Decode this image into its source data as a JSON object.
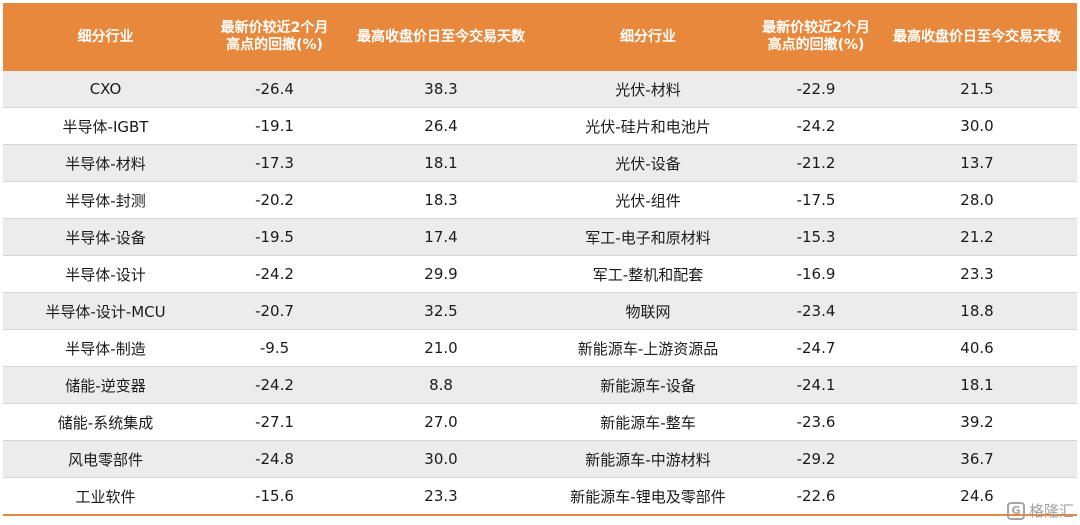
{
  "headers": {
    "col1": "细分行业",
    "col2_line1": "最新价较近2个月",
    "col2_line2": "高点的回撤(%)",
    "col3": "最高收盘价日至今交易天数",
    "col4": "细分行业",
    "col5_line1": "最新价较近2个月",
    "col5_line2": "高点的回撤(%)",
    "col6": "最高收盘价日至今交易天数"
  },
  "rows": [
    {
      "l_industry": "CXO",
      "l_drawdown": "-26.4",
      "l_days": "38.3",
      "r_industry": "光伏-材料",
      "r_drawdown": "-22.9",
      "r_days": "21.5"
    },
    {
      "l_industry": "半导体-IGBT",
      "l_drawdown": "-19.1",
      "l_days": "26.4",
      "r_industry": "光伏-硅片和电池片",
      "r_drawdown": "-24.2",
      "r_days": "30.0"
    },
    {
      "l_industry": "半导体-材料",
      "l_drawdown": "-17.3",
      "l_days": "18.1",
      "r_industry": "光伏-设备",
      "r_drawdown": "-21.2",
      "r_days": "13.7"
    },
    {
      "l_industry": "半导体-封测",
      "l_drawdown": "-20.2",
      "l_days": "18.3",
      "r_industry": "光伏-组件",
      "r_drawdown": "-17.5",
      "r_days": "28.0"
    },
    {
      "l_industry": "半导体-设备",
      "l_drawdown": "-19.5",
      "l_days": "17.4",
      "r_industry": "军工-电子和原材料",
      "r_drawdown": "-15.3",
      "r_days": "21.2"
    },
    {
      "l_industry": "半导体-设计",
      "l_drawdown": "-24.2",
      "l_days": "29.9",
      "r_industry": "军工-整机和配套",
      "r_drawdown": "-16.9",
      "r_days": "23.3"
    },
    {
      "l_industry": "半导体-设计-MCU",
      "l_drawdown": "-20.7",
      "l_days": "32.5",
      "r_industry": "物联网",
      "r_drawdown": "-23.4",
      "r_days": "18.8"
    },
    {
      "l_industry": "半导体-制造",
      "l_drawdown": "-9.5",
      "l_days": "21.0",
      "r_industry": "新能源车-上游资源品",
      "r_drawdown": "-24.7",
      "r_days": "40.6"
    },
    {
      "l_industry": "储能-逆变器",
      "l_drawdown": "-24.2",
      "l_days": "8.8",
      "r_industry": "新能源车-设备",
      "r_drawdown": "-24.1",
      "r_days": "18.1"
    },
    {
      "l_industry": "储能-系统集成",
      "l_drawdown": "-27.1",
      "l_days": "27.0",
      "r_industry": "新能源车-整车",
      "r_drawdown": "-23.6",
      "r_days": "39.2"
    },
    {
      "l_industry": "风电零部件",
      "l_drawdown": "-24.8",
      "l_days": "30.0",
      "r_industry": "新能源车-中游材料",
      "r_drawdown": "-29.2",
      "r_days": "36.7"
    },
    {
      "l_industry": "工业软件",
      "l_drawdown": "-15.6",
      "l_days": "23.3",
      "r_industry": "新能源车-锂电及零部件",
      "r_drawdown": "-22.6",
      "r_days": "24.6"
    }
  ],
  "watermark": {
    "icon": "G",
    "text": "格隆汇"
  },
  "colors": {
    "header_bg": "#E8883C",
    "stripe_bg": "#ececec"
  }
}
